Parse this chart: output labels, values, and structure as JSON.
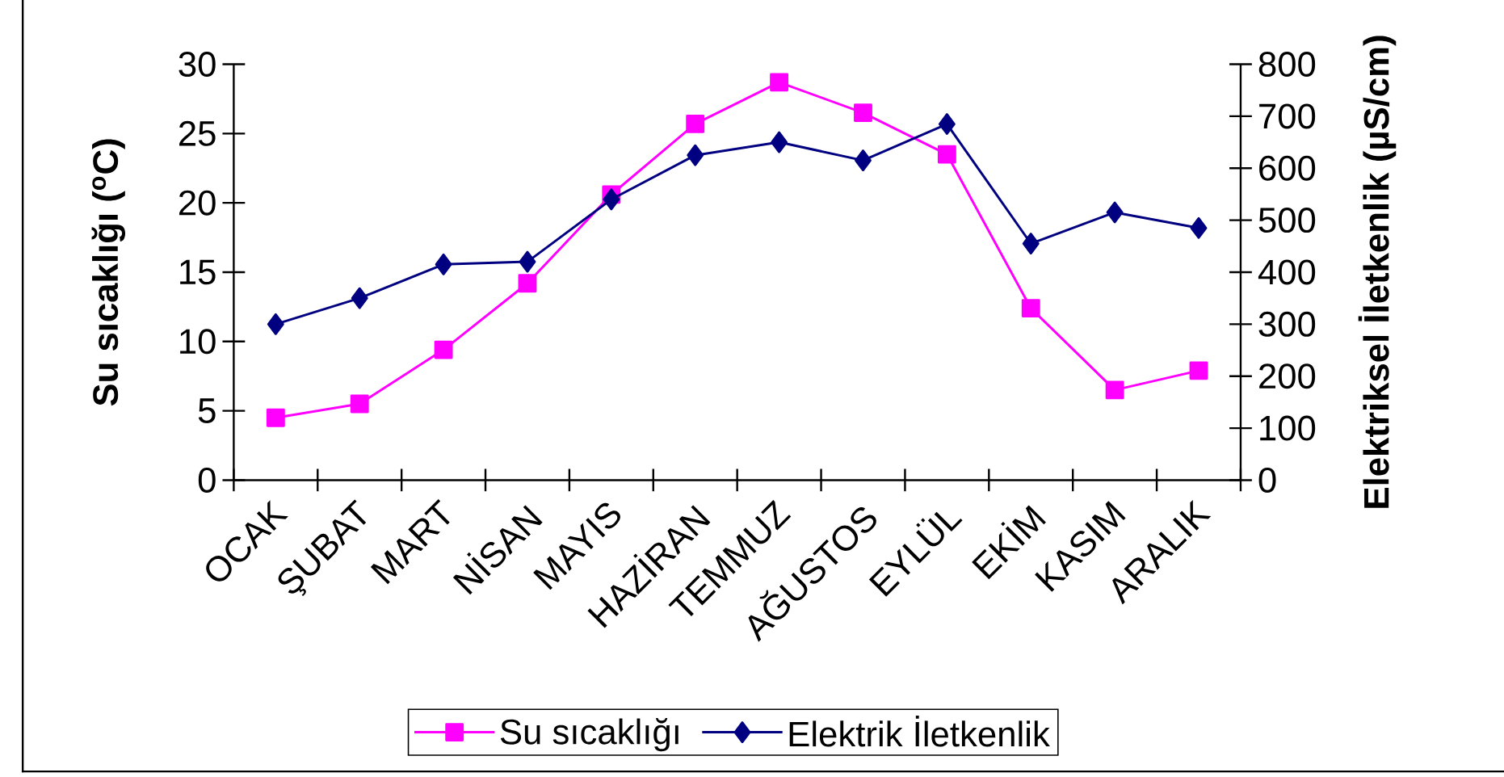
{
  "chart_data": {
    "type": "line",
    "categories": [
      "OCAK",
      "ŞUBAT",
      "MART",
      "NİSAN",
      "MAYIS",
      "HAZİRAN",
      "TEMMUZ",
      "AĞUSTOS",
      "EYLÜL",
      "EKİM",
      "KASIM",
      "ARALIK"
    ],
    "ylabel": "Su sıcaklığı ($^{o}$C)",
    "y2label": "Elektriksel İletkenlik (µS/cm)",
    "ylim": [
      0,
      30
    ],
    "yticks": [
      0,
      5,
      10,
      15,
      20,
      25,
      30
    ],
    "y2lim": [
      0,
      800
    ],
    "y2ticks": [
      0,
      100,
      200,
      300,
      400,
      500,
      600,
      700,
      800
    ],
    "legend": "bottom",
    "series": [
      {
        "name": "Su sıcaklığı",
        "color": "#ff00ff",
        "marker": "square",
        "line_style": "solid",
        "values": [
          4.5,
          5.5,
          9.4,
          14.2,
          20.6,
          25.7,
          28.7,
          26.5,
          23.5,
          12.4,
          6.5,
          7.9
        ]
      },
      {
        "name": "Elektrik İletkenlik",
        "color": "#000080",
        "marker": "diamond",
        "line_style": "solid",
        "axis": "y2",
        "values": [
          300,
          350,
          415,
          420,
          540,
          625,
          650,
          615,
          685,
          455,
          515,
          485
        ]
      }
    ]
  }
}
